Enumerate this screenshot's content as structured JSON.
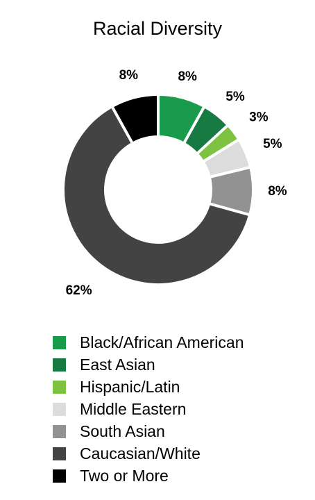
{
  "chart_data": {
    "type": "pie",
    "title": "Racial Diversity",
    "donut": true,
    "legend_position": "bottom",
    "series": [
      {
        "name": "Black/African American",
        "value": 8,
        "label": "8%",
        "color": "#1a9b4b"
      },
      {
        "name": "East Asian",
        "value": 5,
        "label": "5%",
        "color": "#177a43"
      },
      {
        "name": "Hispanic/Latin",
        "value": 3,
        "label": "3%",
        "color": "#7ec242"
      },
      {
        "name": "Middle Eastern",
        "value": 5,
        "label": "5%",
        "color": "#dcdcdc"
      },
      {
        "name": "South Asian",
        "value": 8,
        "label": "8%",
        "color": "#929292"
      },
      {
        "name": "Caucasian/White",
        "value": 62,
        "label": "62%",
        "color": "#434343"
      },
      {
        "name": "Two or More",
        "value": 8,
        "label": "8%",
        "color": "#000000"
      }
    ]
  }
}
